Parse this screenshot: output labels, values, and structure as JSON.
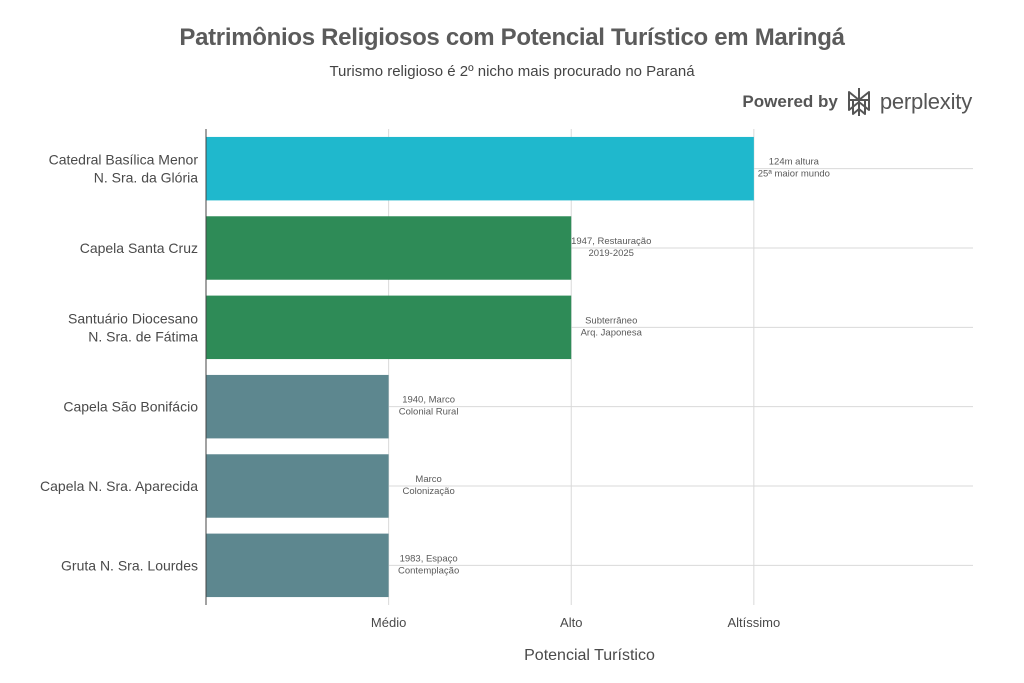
{
  "chart_data": {
    "type": "bar",
    "orientation": "horizontal",
    "title": "Patrimônios Religiosos com Potencial Turístico em Maringá",
    "subtitle": "Turismo religioso é 2º nicho mais procurado no Paraná",
    "xlabel": "Potencial Turístico",
    "ylabel": "",
    "x_ticks": [
      "Médio",
      "Alto",
      "Altíssimo"
    ],
    "x_tick_values": [
      1,
      2,
      3
    ],
    "xlim": [
      0,
      4.2
    ],
    "grid": true,
    "categories": [
      [
        "Catedral Basílica Menor",
        "N. Sra. da Glória"
      ],
      [
        "Capela Santa Cruz"
      ],
      [
        "Santuário Diocesano",
        "N. Sra. de Fátima"
      ],
      [
        "Capela São Bonifácio"
      ],
      [
        "Capela N. Sra. Aparecida"
      ],
      [
        "Gruta N. Sra. Lourdes"
      ]
    ],
    "values": [
      3,
      2,
      2,
      1,
      1,
      1
    ],
    "colors": [
      "#1fb8cd",
      "#2e8b57",
      "#2e8b57",
      "#5d878f",
      "#5d878f",
      "#5d878f"
    ],
    "annotations": [
      [
        "124m altura",
        "25ª maior mundo"
      ],
      [
        "1947, Restauração",
        "2019-2025"
      ],
      [
        "Subterrâneo",
        "Arq. Japonesa"
      ],
      [
        "1940, Marco",
        "Colonial Rural"
      ],
      [
        "Marco",
        "Colonização"
      ],
      [
        "1983, Espaço",
        "Contemplação"
      ]
    ]
  },
  "brand": {
    "powered_by": "Powered by",
    "name": "perplexity",
    "icon": "perplexity-logo-icon"
  }
}
